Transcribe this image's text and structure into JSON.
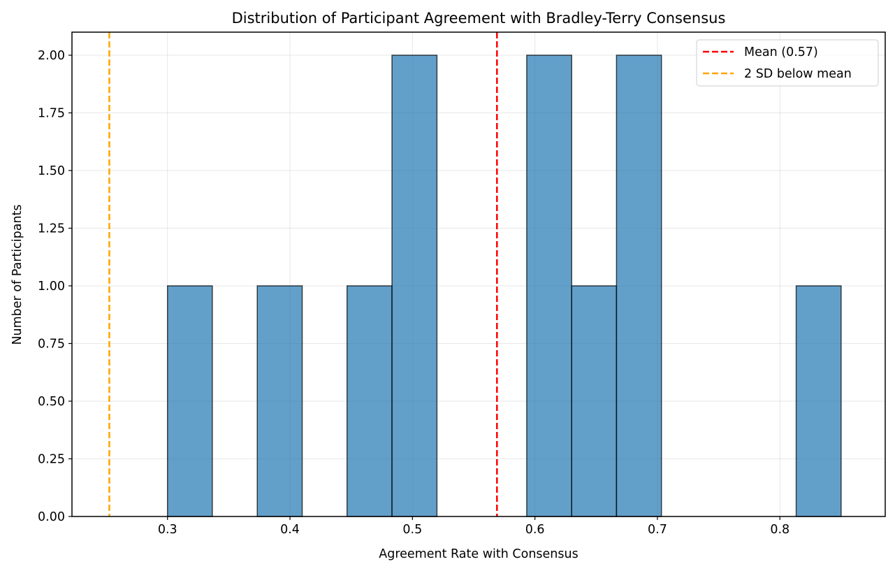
{
  "chart_data": {
    "type": "bar",
    "histogram": true,
    "title": "Distribution of Participant Agreement with Bradley-Terry Consensus",
    "xlabel": "Agreement Rate with Consensus",
    "ylabel": "Number of Participants",
    "xlim": [
      0.222,
      0.886
    ],
    "ylim": [
      0,
      2.1
    ],
    "xticks": [
      0.3,
      0.4,
      0.5,
      0.6,
      0.7,
      0.8
    ],
    "xtick_labels": [
      "0.3",
      "0.4",
      "0.5",
      "0.6",
      "0.7",
      "0.8"
    ],
    "yticks": [
      0,
      0.25,
      0.5,
      0.75,
      1.0,
      1.25,
      1.5,
      1.75,
      2.0
    ],
    "ytick_labels": [
      "0.00",
      "0.25",
      "0.50",
      "0.75",
      "1.00",
      "1.25",
      "1.50",
      "1.75",
      "2.00"
    ],
    "grid": true,
    "bar_color": "#1f77b4",
    "bar_edge_color": "#000000",
    "bins": [
      {
        "x0": 0.3,
        "x1": 0.3366,
        "count": 1
      },
      {
        "x0": 0.3733,
        "x1": 0.41,
        "count": 1
      },
      {
        "x0": 0.4466,
        "x1": 0.4833,
        "count": 1
      },
      {
        "x0": 0.4833,
        "x1": 0.52,
        "count": 2
      },
      {
        "x0": 0.5933,
        "x1": 0.63,
        "count": 2
      },
      {
        "x0": 0.63,
        "x1": 0.6666,
        "count": 1
      },
      {
        "x0": 0.6666,
        "x1": 0.7033,
        "count": 2
      },
      {
        "x0": 0.8133,
        "x1": 0.85,
        "count": 1
      }
    ],
    "vlines": [
      {
        "name": "mean-line",
        "x": 0.569,
        "color": "#ff0000",
        "label": "Mean (0.57)"
      },
      {
        "name": "two-sd-line",
        "x": 0.2525,
        "color": "#ffa500",
        "label": "2 SD below mean"
      }
    ],
    "legend": {
      "position": "top-right",
      "entries": [
        {
          "label": "Mean (0.57)",
          "color": "#ff0000"
        },
        {
          "label": "2 SD below mean",
          "color": "#ffa500"
        }
      ]
    }
  }
}
